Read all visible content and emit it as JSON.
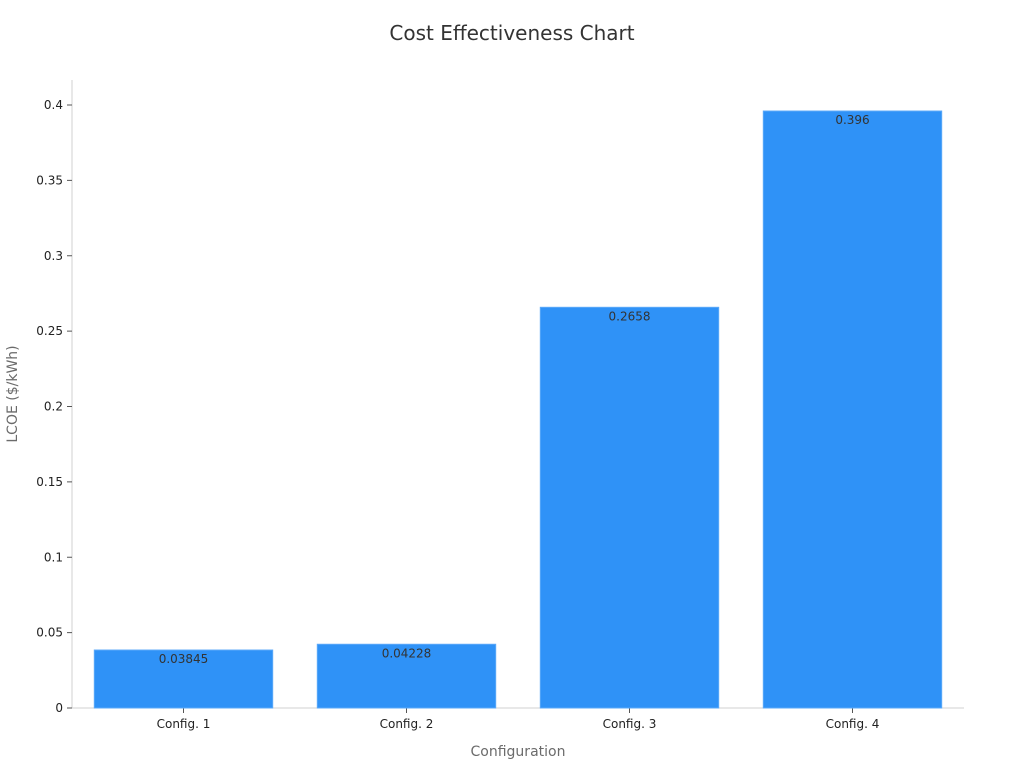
{
  "chart_data": {
    "type": "bar",
    "title": "Cost Effectiveness Chart",
    "xlabel": "Configuration",
    "ylabel": "LCOE ($/kWh)",
    "categories": [
      "Config. 1",
      "Config. 2",
      "Config. 3",
      "Config. 4"
    ],
    "values": [
      0.03845,
      0.04228,
      0.2658,
      0.396
    ],
    "data_labels": [
      "0.03845",
      "0.04228",
      "0.2658",
      "0.396"
    ],
    "ylim": [
      0,
      0.415
    ],
    "yticks": [
      0,
      0.05,
      0.1,
      0.15,
      0.2,
      0.25,
      0.3,
      0.35,
      0.4
    ],
    "ytick_labels": [
      "0",
      "0.05",
      "0.1",
      "0.15",
      "0.2",
      "0.25",
      "0.3",
      "0.35",
      "0.4"
    ],
    "bar_color": "#2f92f7",
    "grid": false,
    "legend": "none"
  }
}
